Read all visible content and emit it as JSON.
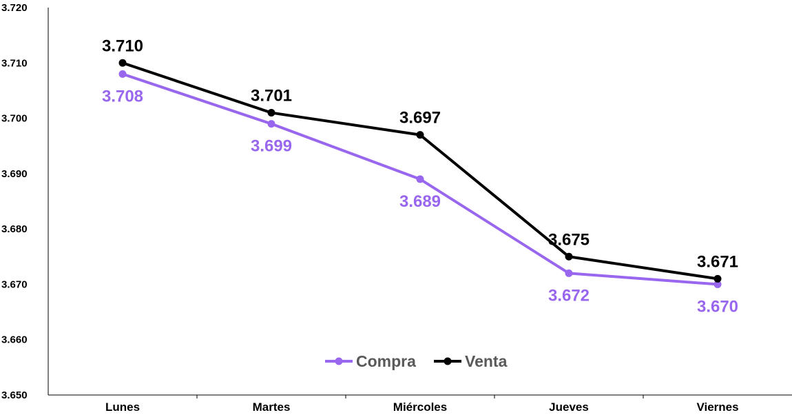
{
  "chart_data": {
    "type": "line",
    "title": "",
    "xlabel": "",
    "ylabel": "",
    "categories": [
      "Lunes",
      "Martes",
      "Miércoles",
      "Jueves",
      "Viernes"
    ],
    "ylim": [
      3.65,
      3.72
    ],
    "y_ticks": [
      3.65,
      3.66,
      3.67,
      3.68,
      3.69,
      3.7,
      3.71,
      3.72
    ],
    "y_tick_labels": [
      "3.650",
      "3.660",
      "3.670",
      "3.680",
      "3.690",
      "3.700",
      "3.710",
      "3.720"
    ],
    "grid": false,
    "legend_position": "bottom-center",
    "series": [
      {
        "name": "Compra",
        "color": "#9966ee",
        "values": [
          3.708,
          3.699,
          3.689,
          3.672,
          3.67
        ],
        "labels": [
          "3.708",
          "3.699",
          "3.689",
          "3.672",
          "3.670"
        ]
      },
      {
        "name": "Venta",
        "color": "#000000",
        "values": [
          3.71,
          3.701,
          3.697,
          3.675,
          3.671
        ],
        "labels": [
          "3.710",
          "3.701",
          "3.697",
          "3.675",
          "3.671"
        ]
      }
    ]
  }
}
